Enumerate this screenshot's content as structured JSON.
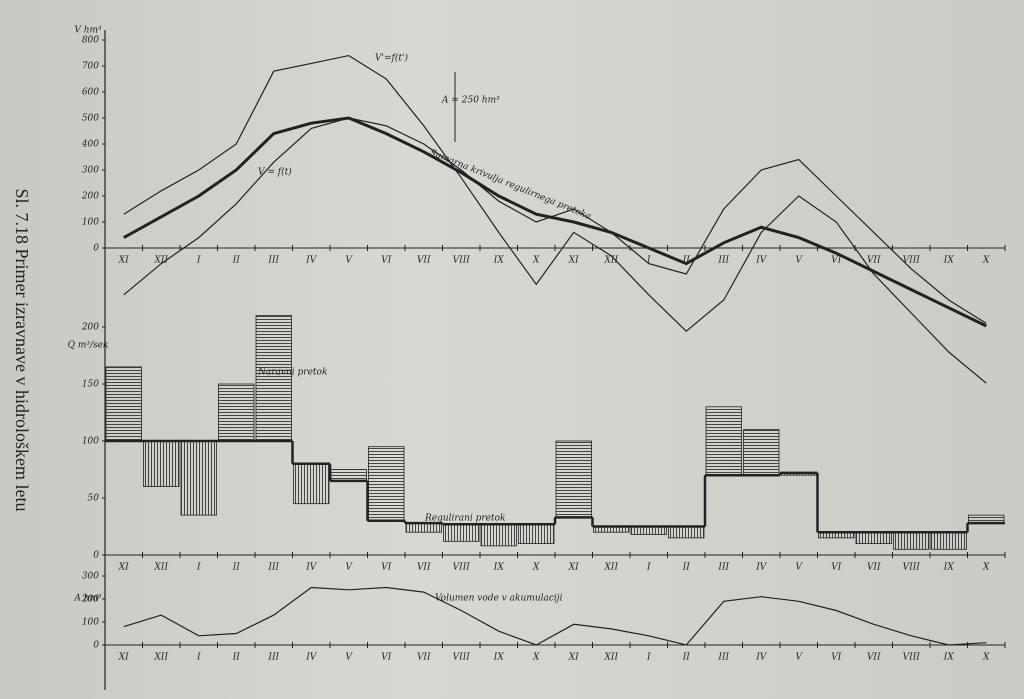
{
  "caption": "Sl. 7.18 Primer izravnave v hidrološkem letu",
  "chart_data": [
    {
      "type": "line",
      "y_label": "V hm³",
      "ylim": [
        -600,
        800
      ],
      "yticks": [
        0,
        100,
        200,
        300,
        400,
        500,
        600,
        700,
        800
      ],
      "categories": [
        "XI",
        "XII",
        "I",
        "II",
        "III",
        "IV",
        "V",
        "VI",
        "VII",
        "VIII",
        "IX",
        "X",
        "XI",
        "XII",
        "I",
        "II",
        "III",
        "IV",
        "V",
        "VI",
        "VII",
        "VIII",
        "IX",
        "X"
      ],
      "annotations": [
        "A = 250 hm³"
      ],
      "series": [
        {
          "name": "V'=f(t')",
          "color": "#222",
          "width": 1.2,
          "values": [
            130,
            220,
            300,
            400,
            680,
            710,
            740,
            650,
            470,
            270,
            60,
            -140,
            60,
            -30,
            -180,
            -320,
            -200,
            60,
            200,
            100,
            -100,
            -250,
            -400,
            -520
          ]
        },
        {
          "name": "V = f(t)",
          "color": "#222",
          "width": 1.2,
          "values": [
            -180,
            -60,
            40,
            170,
            330,
            460,
            500,
            470,
            400,
            300,
            180,
            100,
            150,
            60,
            -60,
            -100,
            150,
            300,
            340,
            200,
            60,
            -80,
            -200,
            -290
          ]
        },
        {
          "name": "Sumarna krivulja regulirnega pretoka",
          "color": "#222",
          "width": 3,
          "values": [
            40,
            120,
            200,
            300,
            440,
            480,
            500,
            440,
            370,
            290,
            200,
            130,
            100,
            60,
            0,
            -60,
            20,
            80,
            40,
            -20,
            -90,
            -160,
            -230,
            -300
          ]
        }
      ]
    },
    {
      "type": "step_bar",
      "y_label": "Q m³/sek",
      "ylim": [
        0,
        200
      ],
      "yticks": [
        0,
        50,
        100,
        150,
        200
      ],
      "categories": [
        "XI",
        "XII",
        "I",
        "II",
        "III",
        "IV",
        "V",
        "VI",
        "VII",
        "VIII",
        "IX",
        "X",
        "XI",
        "XII",
        "I",
        "II",
        "III",
        "IV",
        "V",
        "VI",
        "VII",
        "VIII",
        "IX",
        "X"
      ],
      "series": [
        {
          "name": "Naravni pretok",
          "color": "#222",
          "values": [
            165,
            60,
            35,
            150,
            210,
            45,
            75,
            95,
            20,
            12,
            8,
            10,
            100,
            20,
            18,
            15,
            130,
            110,
            70,
            15,
            10,
            5,
            5,
            35
          ]
        },
        {
          "name": "Regulirani pretok",
          "color": "#222",
          "values": [
            100,
            100,
            100,
            100,
            100,
            80,
            65,
            30,
            28,
            27,
            27,
            27,
            33,
            25,
            25,
            25,
            70,
            70,
            72,
            20,
            20,
            20,
            20,
            28
          ]
        }
      ]
    },
    {
      "type": "line",
      "y_label": "A hm³",
      "ylim": [
        0,
        300
      ],
      "yticks": [
        0,
        100,
        200,
        300
      ],
      "categories": [
        "XI",
        "XII",
        "I",
        "II",
        "III",
        "IV",
        "V",
        "VI",
        "VII",
        "VIII",
        "IX",
        "X",
        "XI",
        "XII",
        "I",
        "II",
        "III",
        "IV",
        "V",
        "VI",
        "VII",
        "VIII",
        "IX",
        "X"
      ],
      "series": [
        {
          "name": "Volumen vode v akumulaciji",
          "color": "#222",
          "width": 1.2,
          "values": [
            80,
            130,
            40,
            50,
            130,
            250,
            240,
            250,
            230,
            150,
            60,
            0,
            90,
            70,
            40,
            0,
            190,
            210,
            190,
            150,
            90,
            40,
            0,
            10
          ]
        }
      ]
    }
  ]
}
